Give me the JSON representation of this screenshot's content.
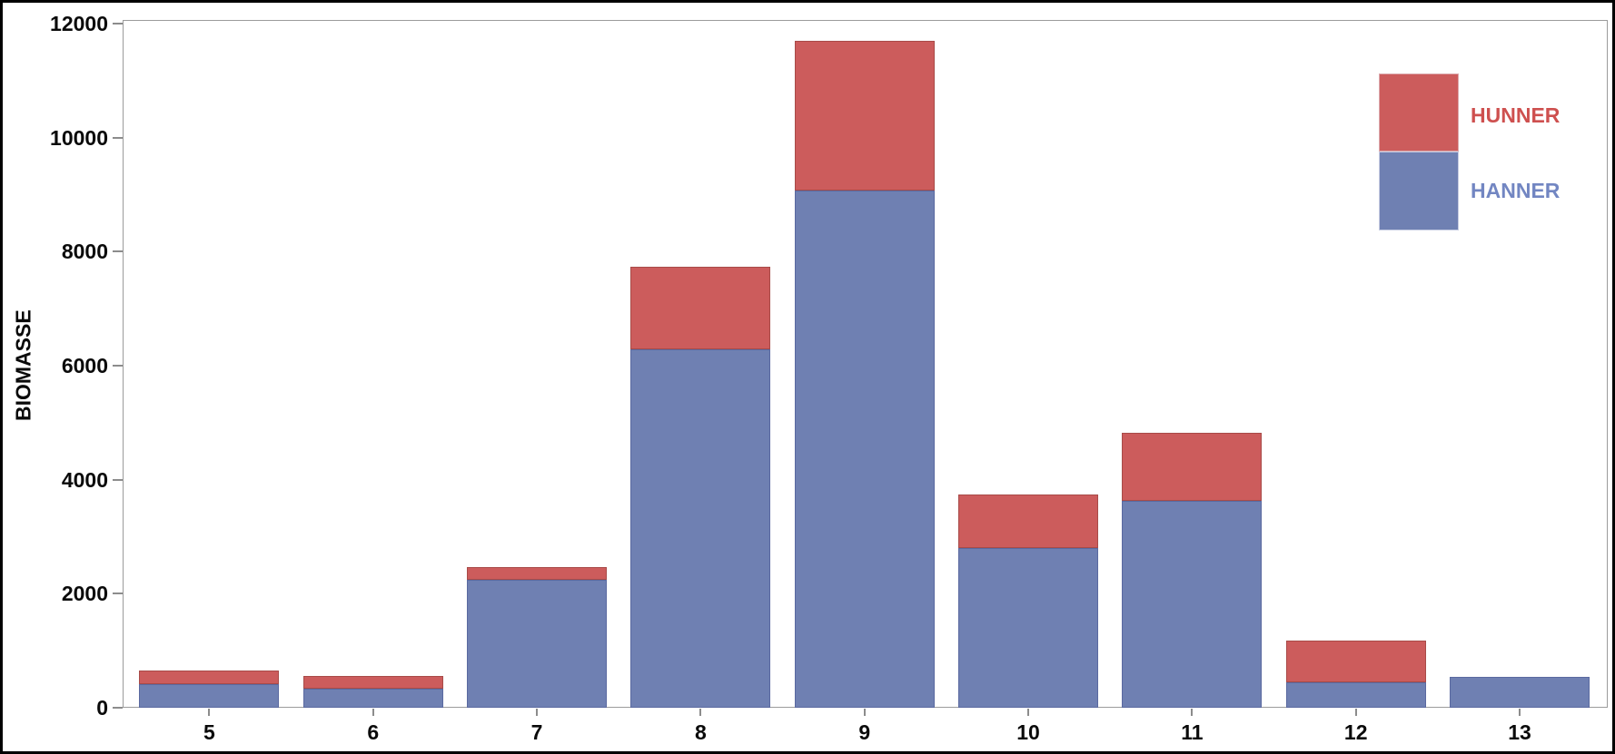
{
  "window": {
    "background": "#FFFFFF",
    "border_color": "#000000"
  },
  "axis_style": {
    "frame_line_color": "#9B9B9B",
    "tick_color": "#8C8C8C",
    "label_color": "#0A0A0A"
  },
  "chart_data": {
    "type": "bar",
    "stacked": true,
    "title": "",
    "xlabel": "",
    "ylabel": "BIOMASSE",
    "categories": [
      "5",
      "6",
      "7",
      "8",
      "9",
      "10",
      "11",
      "12",
      "13"
    ],
    "series": [
      {
        "name": "HANNER",
        "color": "#6F80B2",
        "border_color": "#5A69A0",
        "values": [
          410,
          340,
          2240,
          6280,
          9070,
          2800,
          3630,
          450,
          540
        ]
      },
      {
        "name": "HUNNER",
        "color": "#CC5C5C",
        "border_color": "#A84B48",
        "values": [
          240,
          215,
          230,
          1450,
          2630,
          940,
          1200,
          730,
          0
        ]
      }
    ],
    "ylim": [
      0,
      12000
    ],
    "yticks": [
      0,
      2000,
      4000,
      6000,
      8000,
      10000,
      12000
    ],
    "ytick_labels": [
      "0",
      "2000",
      "4000",
      "6000",
      "8000",
      "10000",
      "12000"
    ],
    "grid": false,
    "legend": {
      "position": "top-right",
      "entries": [
        {
          "label": "HUNNER",
          "swatch_color": "#CC5C5C",
          "text_color": "#CE504F"
        },
        {
          "label": "HANNER",
          "swatch_color": "#6F80B2",
          "text_color": "#7286C2"
        }
      ]
    }
  }
}
